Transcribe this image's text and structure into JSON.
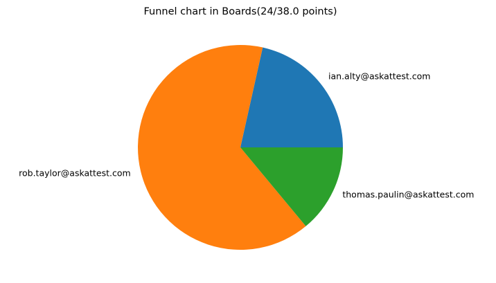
{
  "chart_data": {
    "type": "pie",
    "title": "Funnel chart in Boards(24/38.0 points)",
    "slices": [
      {
        "label": "ian.alty@askattest.com",
        "value": 8,
        "color": "#1f77b4"
      },
      {
        "label": "rob.taylor@askattest.com",
        "value": 24,
        "color": "#ff7f0e"
      },
      {
        "label": "thomas.paulin@askattest.com",
        "value": 5.2,
        "color": "#2ca02c"
      }
    ],
    "start_angle_deg": 0,
    "direction": "counterclockwise",
    "legend": "none"
  }
}
